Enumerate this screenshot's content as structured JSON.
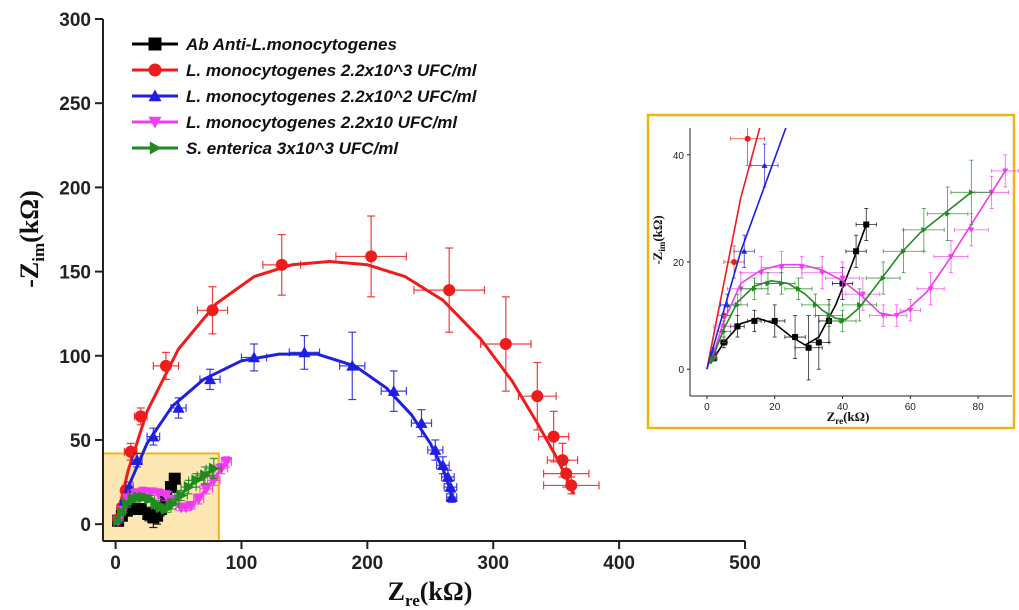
{
  "chart_data": [
    {
      "type": "scatter",
      "panel": "main",
      "xlabel": {
        "main": "Z",
        "sub": "re",
        "unit": "(kΩ)"
      },
      "ylabel": {
        "main": "-Z",
        "sub": "im",
        "unit": "(kΩ)"
      },
      "xlim": [
        -10,
        500
      ],
      "ylim": [
        -10,
        300
      ],
      "xticks": [
        0,
        100,
        200,
        300,
        400,
        500
      ],
      "yticks": [
        0,
        50,
        100,
        150,
        200,
        250,
        300
      ],
      "legend_position": "top-left",
      "zoom_box": {
        "x": [
          -10,
          82
        ],
        "y": [
          -10,
          42
        ],
        "color": "#f2b318"
      },
      "series": [
        {
          "name": "Ab Anti-L.monocytogenes",
          "color": "#000000",
          "marker": "square",
          "x": [
            2,
            5,
            9,
            14,
            20,
            26,
            30,
            33,
            36,
            40,
            44,
            47
          ],
          "y": [
            2,
            5,
            8,
            9,
            9,
            6,
            4,
            5,
            9,
            16,
            22,
            27
          ],
          "yerr": [
            0.5,
            1,
            2,
            2,
            3,
            4,
            6,
            5,
            4,
            3,
            3,
            3
          ],
          "xerr": [
            0.5,
            1,
            2,
            2,
            3,
            3,
            4,
            3,
            3,
            3,
            3,
            3
          ],
          "fit_x": [
            1,
            5,
            10,
            15,
            20,
            25,
            29,
            33,
            38,
            43,
            47
          ],
          "fit_y": [
            1,
            5,
            8.5,
            9.5,
            8.5,
            6,
            4.5,
            6,
            12,
            20,
            27
          ]
        },
        {
          "name": "L. monocytogenes 2.2x10^3 UFC/ml",
          "color": "#ee1c1c",
          "marker": "circle",
          "x": [
            2,
            5,
            8,
            12,
            20,
            40,
            77,
            132,
            203,
            265,
            310,
            335,
            348,
            355,
            358,
            362
          ],
          "y": [
            3,
            10,
            20,
            43,
            64,
            94,
            127,
            154,
            159,
            139,
            107,
            76,
            52,
            38,
            30,
            23
          ],
          "yerr": [
            1,
            2,
            3,
            5,
            5,
            8,
            14,
            18,
            24,
            25,
            28,
            20,
            15,
            10,
            8,
            5
          ],
          "xerr": [
            1,
            2,
            3,
            5,
            5,
            10,
            12,
            15,
            28,
            28,
            20,
            15,
            12,
            12,
            18,
            22
          ],
          "fit_x": [
            0,
            10,
            25,
            50,
            80,
            110,
            140,
            170,
            200,
            230,
            260,
            290,
            315,
            335,
            350,
            360,
            364
          ],
          "fit_y": [
            0,
            32,
            67,
            104,
            131,
            147,
            154,
            156,
            154,
            147,
            133,
            110,
            85,
            60,
            40,
            25,
            18
          ]
        },
        {
          "name": "L. monocytogenes 2.2x10^2 UFC/ml",
          "color": "#1f1fdf",
          "marker": "triangle-up",
          "x": [
            2,
            6,
            11,
            17,
            30,
            50,
            75,
            110,
            150,
            188,
            221,
            243,
            254,
            260,
            264,
            266,
            267
          ],
          "y": [
            3,
            12,
            22,
            38,
            52,
            69,
            86,
            99,
            102,
            94,
            79,
            60,
            44,
            35,
            28,
            22,
            16
          ],
          "yerr": [
            1,
            2,
            3,
            4,
            5,
            6,
            6,
            8,
            10,
            20,
            12,
            8,
            6,
            5,
            4,
            4,
            3
          ],
          "xerr": [
            1,
            2,
            3,
            4,
            5,
            6,
            8,
            10,
            12,
            10,
            10,
            8,
            6,
            5,
            5,
            5,
            4
          ],
          "fit_x": [
            0,
            10,
            25,
            45,
            70,
            100,
            130,
            160,
            190,
            215,
            235,
            250,
            260,
            266,
            268
          ],
          "fit_y": [
            0,
            22,
            48,
            70,
            86,
            97,
            101,
            101,
            94,
            81,
            65,
            48,
            33,
            20,
            13
          ]
        },
        {
          "name": "L. monocytogenes 2.2x10 UFC/ml",
          "color": "#f03cf0",
          "marker": "triangle-down",
          "x": [
            2,
            5,
            10,
            16,
            22,
            28,
            34,
            40,
            46,
            52,
            56,
            60,
            66,
            72,
            78,
            84,
            88
          ],
          "y": [
            2,
            8,
            15,
            18,
            19,
            19,
            18,
            17,
            14,
            10,
            10,
            11,
            15,
            21,
            26,
            33,
            37
          ],
          "yerr": [
            0.5,
            2,
            3,
            3,
            3,
            2,
            3,
            3,
            3,
            2,
            2,
            2,
            3,
            3,
            3,
            3,
            3
          ],
          "xerr": [
            1,
            3,
            4,
            6,
            6,
            6,
            6,
            5,
            5,
            4,
            3,
            3,
            4,
            5,
            5,
            5,
            4
          ],
          "fit_x": [
            1,
            5,
            10,
            16,
            22,
            28,
            34,
            40,
            46,
            51,
            55,
            59,
            65,
            71,
            77,
            83,
            88
          ],
          "fit_y": [
            1,
            9,
            16,
            18.5,
            19.5,
            19.5,
            18.5,
            16.5,
            13.5,
            10.5,
            10,
            11,
            14.5,
            20,
            26,
            32,
            37
          ]
        },
        {
          "name": "S. enterica 3x10^3 UFC/ml",
          "color": "#1f8a1f",
          "marker": "triangle-right",
          "x": [
            2,
            5,
            9,
            14,
            18,
            22,
            27,
            32,
            36,
            40,
            45,
            52,
            58,
            64,
            71,
            78
          ],
          "y": [
            2,
            7,
            12,
            15,
            16,
            16,
            15,
            12,
            10,
            9,
            12,
            17,
            22,
            26,
            29,
            33
          ],
          "yerr": [
            0.5,
            2,
            2,
            2,
            2,
            2,
            2,
            2,
            2,
            2,
            3,
            3,
            4,
            4,
            5,
            6
          ],
          "xerr": [
            1,
            2,
            3,
            4,
            4,
            4,
            4,
            4,
            4,
            4,
            5,
            5,
            6,
            6,
            6,
            6
          ],
          "fit_x": [
            1,
            5,
            9,
            14,
            19,
            24,
            29,
            34,
            38,
            41,
            45,
            51,
            57,
            63,
            70,
            78
          ],
          "fit_y": [
            1,
            7.5,
            12.5,
            15.5,
            16.5,
            16,
            14,
            11,
            9.5,
            9.3,
            11.5,
            16.5,
            21.5,
            25.5,
            29,
            33
          ]
        }
      ]
    },
    {
      "type": "scatter",
      "panel": "inset",
      "xlabel": {
        "main": "Z",
        "sub": "re",
        "unit": "(kΩ)"
      },
      "ylabel": {
        "main": "-Z",
        "sub": "im",
        "unit": "(kΩ)"
      },
      "xlim": [
        -5,
        90
      ],
      "ylim": [
        -5,
        45
      ],
      "xticks": [
        0,
        20,
        40,
        60,
        80
      ],
      "yticks": [
        0,
        20,
        40
      ],
      "frame_color": "#f2b318",
      "note": "same five series as main panel"
    }
  ]
}
